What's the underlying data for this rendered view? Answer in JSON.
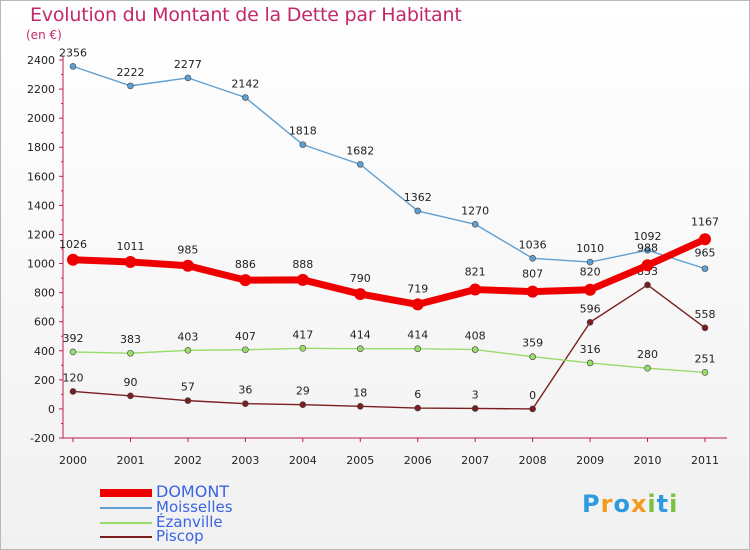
{
  "title": "Evolution du Montant de la Dette par Habitant",
  "subtitle": "(en €)",
  "logo": {
    "text": "Proxiti",
    "colors": [
      "#2e9be0",
      "#f39b1e",
      "#2e9be0",
      "#f39b1e",
      "#7ac143",
      "#2e9be0",
      "#7ac143"
    ]
  },
  "chart_data": {
    "type": "line",
    "title": "Evolution du Montant de la Dette par Habitant",
    "ylabel": "(en €)",
    "categories": [
      "2000",
      "2001",
      "2002",
      "2003",
      "2004",
      "2005",
      "2006",
      "2007",
      "2008",
      "2009",
      "2010",
      "2011"
    ],
    "ylim": [
      -200,
      2400
    ],
    "yticks": [
      "-200",
      "0",
      "200",
      "400",
      "600",
      "800",
      "1000",
      "1200",
      "1400",
      "1600",
      "1800",
      "2000",
      "2200",
      "2400"
    ],
    "grid": false,
    "legend_position": "bottom-left",
    "series": [
      {
        "name": "DOMONT",
        "color": "#ee0000",
        "values": [
          1026,
          1011,
          985,
          886,
          888,
          790,
          719,
          821,
          807,
          820,
          988,
          1167
        ],
        "labels": [
          "1026",
          "1011",
          "985",
          "886",
          "888",
          "790",
          "719",
          "821",
          "807",
          "820",
          "988",
          "1167"
        ]
      },
      {
        "name": "Moisselles",
        "color": "#5f9fd1",
        "values": [
          2356,
          2222,
          2277,
          2142,
          1818,
          1682,
          1362,
          1270,
          1036,
          1010,
          1092,
          965
        ],
        "labels": [
          "2356",
          "2222",
          "2277",
          "2142",
          "1818",
          "1682",
          "1362",
          "1270",
          "1036",
          "1010",
          "1092",
          "965"
        ]
      },
      {
        "name": "Ézanville",
        "color": "#98dc6c",
        "values": [
          392,
          383,
          403,
          407,
          417,
          414,
          414,
          408,
          359,
          316,
          280,
          251
        ],
        "labels": [
          "392",
          "383",
          "403",
          "407",
          "417",
          "414",
          "414",
          "408",
          "359",
          "316",
          "280",
          "251"
        ]
      },
      {
        "name": "Piscop",
        "color": "#7a1e22",
        "values": [
          120,
          90,
          57,
          36,
          29,
          18,
          6,
          3,
          0,
          596,
          853,
          558
        ],
        "labels": [
          "120",
          "90",
          "57",
          "36",
          "29",
          "18",
          "6",
          "3",
          "0",
          "596",
          "853",
          "558"
        ]
      }
    ]
  }
}
